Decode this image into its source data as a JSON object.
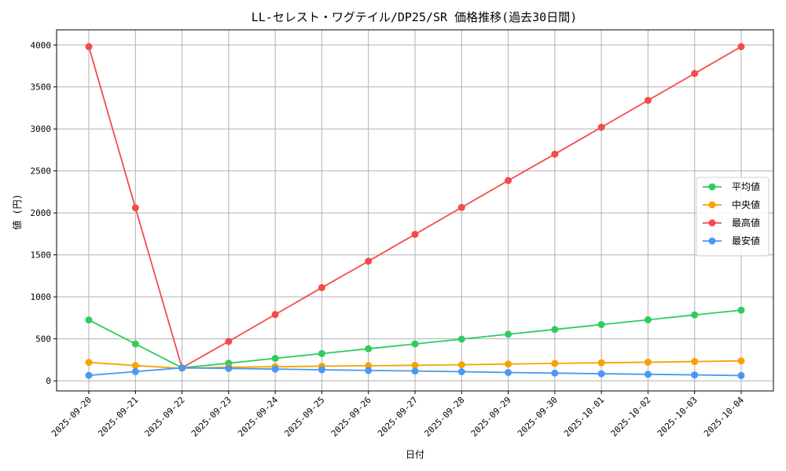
{
  "chart_data": {
    "type": "line",
    "title": "LL-セレスト・ワグテイル/DP25/SR 価格推移(過去30日間)",
    "xlabel": "日付",
    "ylabel": "値 (円)",
    "categories": [
      "2025-09-20",
      "2025-09-21",
      "2025-09-22",
      "2025-09-23",
      "2025-09-24",
      "2025-09-25",
      "2025-09-26",
      "2025-09-27",
      "2025-09-28",
      "2025-09-29",
      "2025-09-30",
      "2025-10-01",
      "2025-10-02",
      "2025-10-03",
      "2025-10-04"
    ],
    "ylim": [
      -120,
      4180
    ],
    "yticks": [
      0,
      500,
      1000,
      1500,
      2000,
      2500,
      3000,
      3500,
      4000
    ],
    "grid": true,
    "legend_position": "center-right",
    "series": [
      {
        "name": "平均値",
        "color": "#2ecc5f",
        "values": [
          725,
          440,
          155,
          210,
          268,
          325,
          382,
          440,
          497,
          555,
          612,
          670,
          727,
          785,
          842
        ]
      },
      {
        "name": "中央値",
        "color": "#f5a300",
        "values": [
          220,
          182,
          150,
          163,
          168,
          175,
          180,
          185,
          192,
          200,
          208,
          215,
          222,
          230,
          238
        ]
      },
      {
        "name": "最高値",
        "color": "#f44b4b",
        "values": [
          3980,
          2060,
          155,
          470,
          790,
          1110,
          1425,
          1745,
          2065,
          2385,
          2700,
          3020,
          3340,
          3660,
          3980
        ]
      },
      {
        "name": "最安値",
        "color": "#4a98f5",
        "values": [
          65,
          110,
          155,
          148,
          140,
          132,
          124,
          117,
          109,
          100,
          92,
          85,
          78,
          71,
          63
        ]
      }
    ]
  }
}
